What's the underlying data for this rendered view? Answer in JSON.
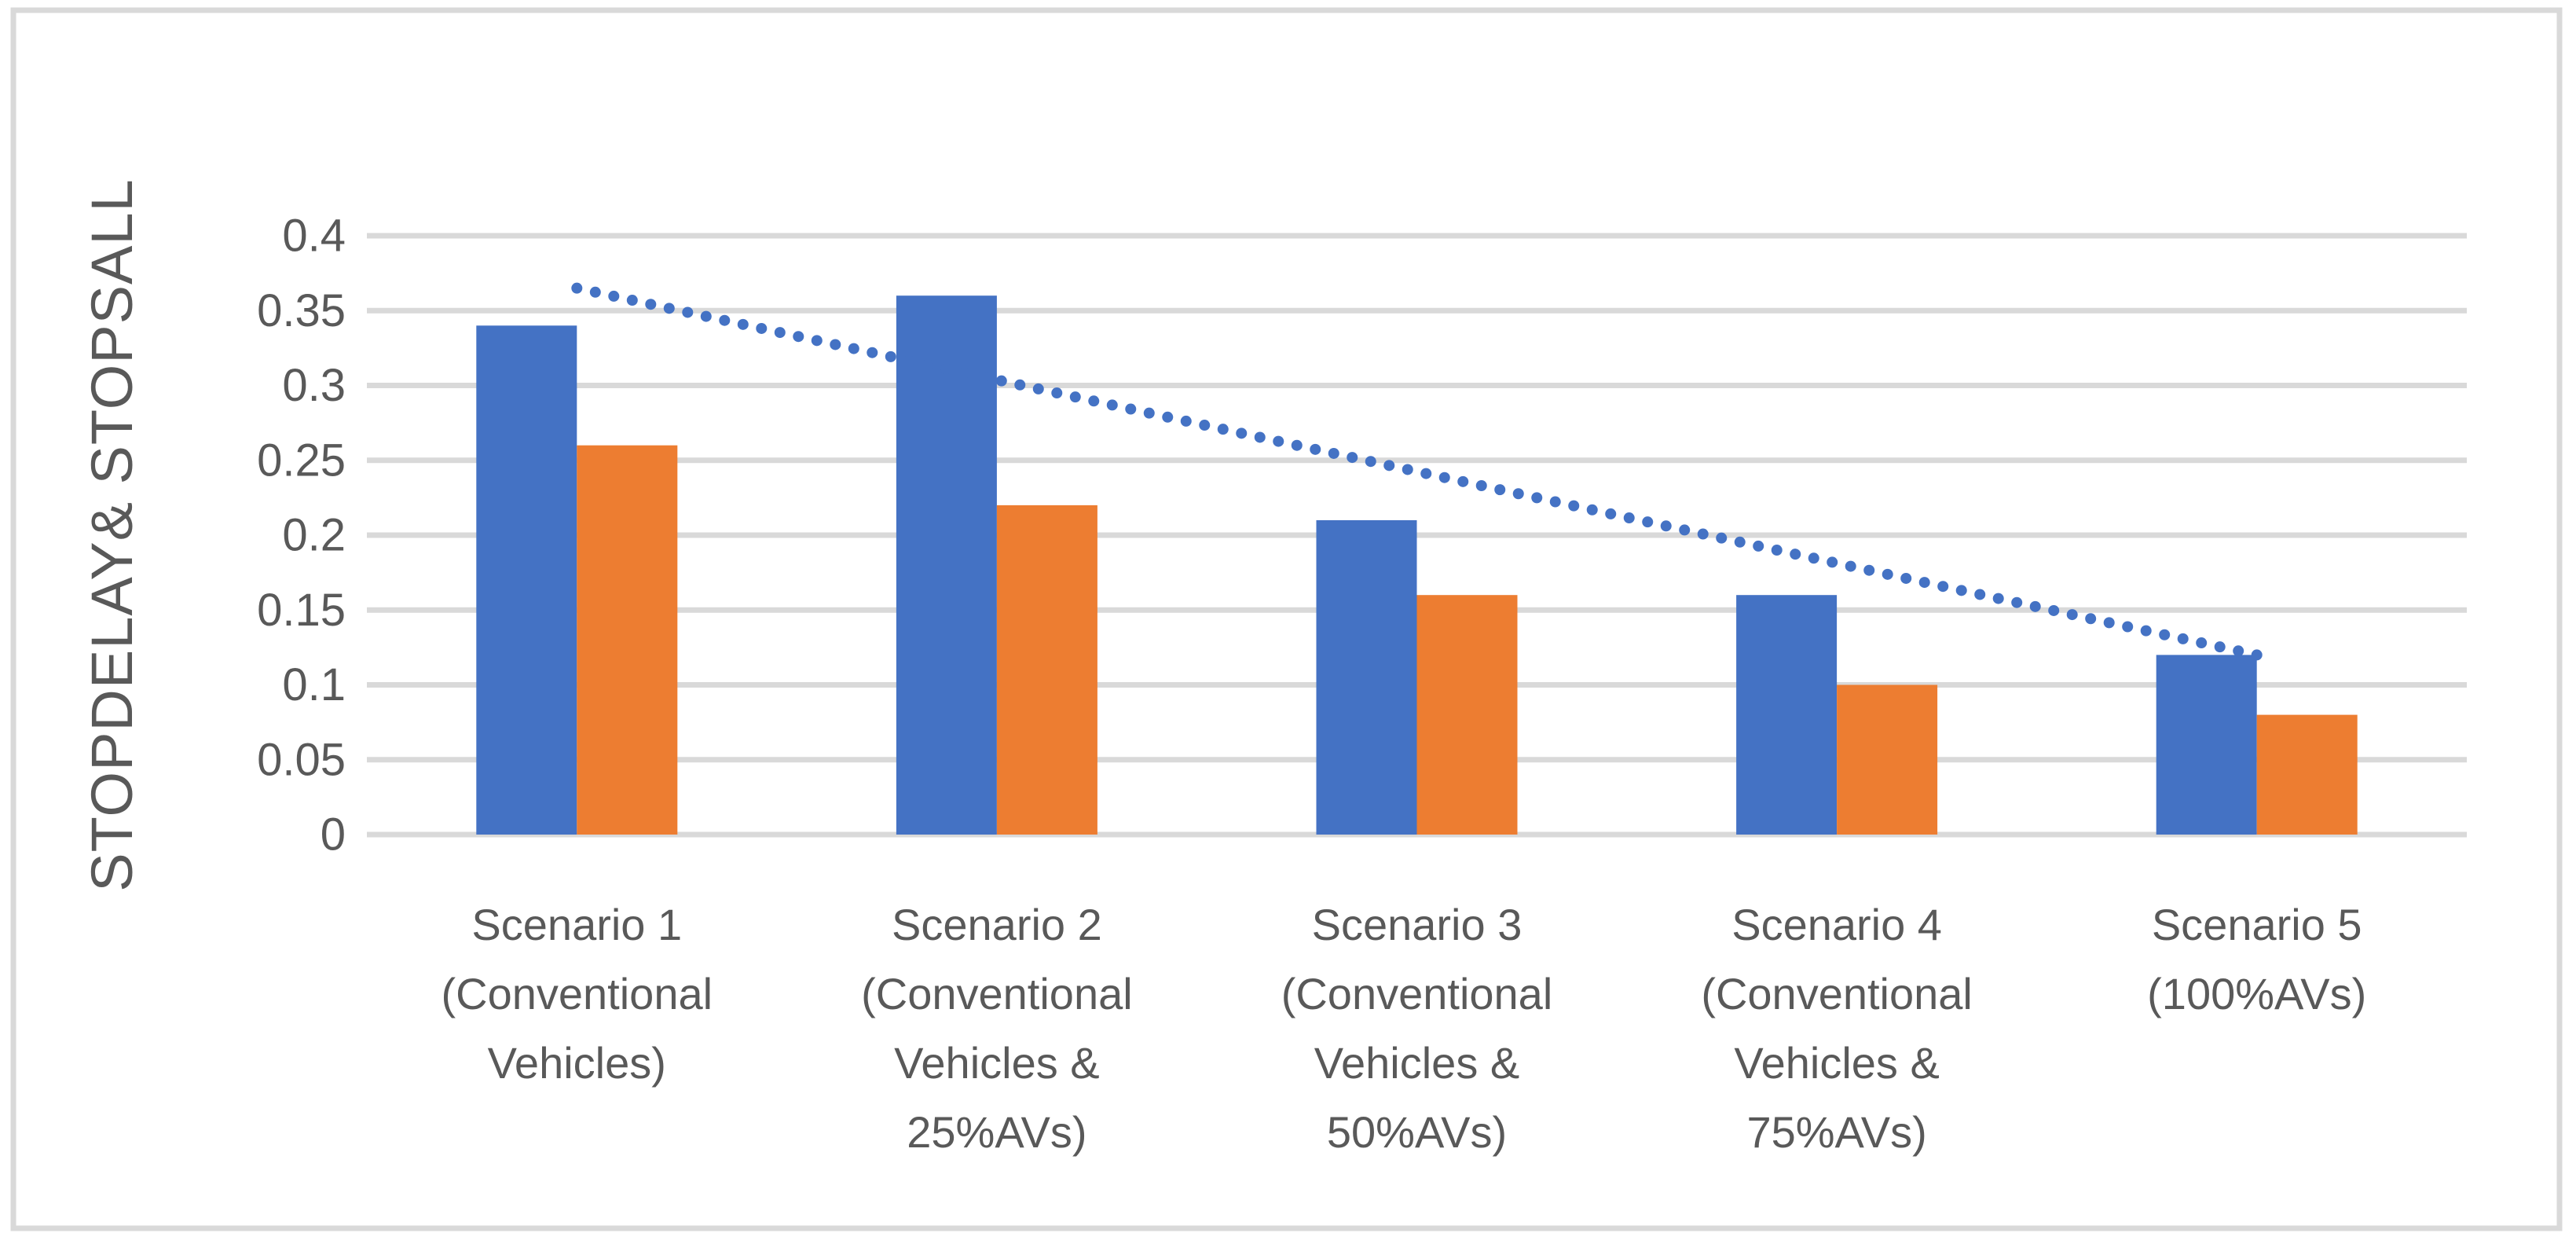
{
  "figure": {
    "background_color": "#FFFFFF",
    "frame_border_color": "#D9D9D9",
    "text_color": "#595959",
    "gridline_color": "#D9D9D9"
  },
  "chart_data": {
    "type": "bar",
    "title": "",
    "xlabel": "",
    "ylabel": "STOPDELAY& STOPSALL",
    "ylim": [
      0,
      0.4
    ],
    "y_tick_step": 0.05,
    "y_tick_labels": [
      "0",
      "0.05",
      "0.1",
      "0.15",
      "0.2",
      "0.25",
      "0.3",
      "0.35",
      "0.4"
    ],
    "grid": true,
    "legend_position": "none",
    "categories": [
      "Scenario 1 (Conventional Vehicles)",
      "Scenario 2 (Conventional Vehicles & 25%AVs)",
      "Scenario 3 (Conventional Vehicles & 50%AVs)",
      "Scenario 4 (Conventional Vehicles & 75%AVs)",
      "Scenario 5 (100%AVs)"
    ],
    "category_label_lines": [
      [
        "Scenario 1",
        "(Conventional",
        "Vehicles)"
      ],
      [
        "Scenario 2",
        "(Conventional",
        "Vehicles &",
        "25%AVs)"
      ],
      [
        "Scenario 3",
        "(Conventional",
        "Vehicles &",
        "50%AVs)"
      ],
      [
        "Scenario 4",
        "(Conventional",
        "Vehicles &",
        "75%AVs)"
      ],
      [
        "Scenario 5",
        "(100%AVs)"
      ]
    ],
    "series": [
      {
        "name": "STOPDELAY",
        "color": "#4472C4",
        "values": [
          0.34,
          0.36,
          0.21,
          0.16,
          0.12
        ]
      },
      {
        "name": "STOPSALL",
        "color": "#ED7D31",
        "values": [
          0.26,
          0.22,
          0.16,
          0.1,
          0.08
        ]
      }
    ],
    "trendline": {
      "shape": "linear",
      "of_series": "STOPDELAY",
      "style": "dotted",
      "color": "#4472C4",
      "start_value": 0.365,
      "end_value": 0.12
    }
  }
}
